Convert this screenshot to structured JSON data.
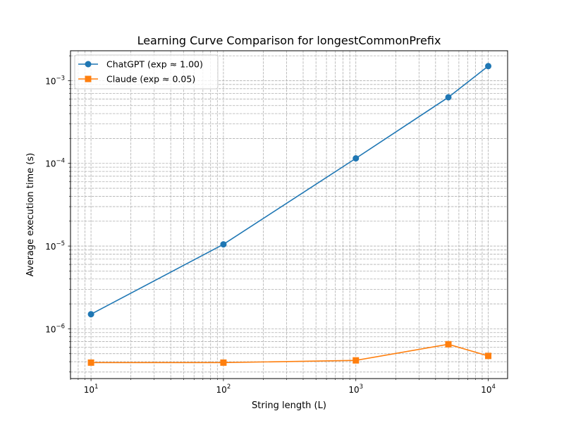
{
  "chart_data": {
    "type": "line",
    "title": "Learning Curve Comparison for longestCommonPrefix",
    "xlabel": "String length (L)",
    "ylabel": "Average execution time (s)",
    "xscale": "log",
    "yscale": "log",
    "xlim": [
      7,
      14000
    ],
    "ylim": [
      2.5e-07,
      0.0023
    ],
    "grid": true,
    "legend_position": "top-left",
    "x_ticks": [
      {
        "value": 10,
        "base": "10",
        "exp": "1"
      },
      {
        "value": 100,
        "base": "10",
        "exp": "2"
      },
      {
        "value": 1000,
        "base": "10",
        "exp": "3"
      },
      {
        "value": 10000,
        "base": "10",
        "exp": "4"
      }
    ],
    "y_ticks": [
      {
        "value": 1e-06,
        "base": "10",
        "exp": "−6"
      },
      {
        "value": 1e-05,
        "base": "10",
        "exp": "−5"
      },
      {
        "value": 0.0001,
        "base": "10",
        "exp": "−4"
      },
      {
        "value": 0.001,
        "base": "10",
        "exp": "−3"
      }
    ],
    "x": [
      10,
      100,
      1000,
      5000,
      10000
    ],
    "series": [
      {
        "name": "ChatGPT (exp ≈ 1.00)",
        "color": "#1f77b4",
        "marker": "circle",
        "values": [
          1.5e-06,
          1.05e-05,
          0.000115,
          0.00063,
          0.0015
        ]
      },
      {
        "name": "Claude (exp ≈ 0.05)",
        "color": "#ff7f0e",
        "marker": "square",
        "values": [
          3.9e-07,
          3.9e-07,
          4.15e-07,
          6.5e-07,
          4.7e-07
        ]
      }
    ]
  }
}
